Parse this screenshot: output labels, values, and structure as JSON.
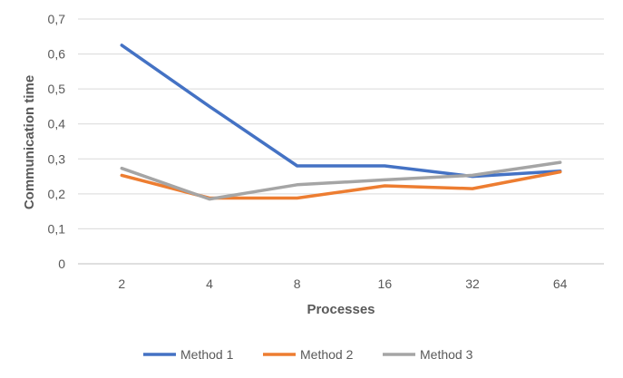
{
  "chart_data": {
    "type": "line",
    "title": "",
    "xlabel": "Processes",
    "ylabel": "Communication time",
    "categories": [
      "2",
      "4",
      "8",
      "16",
      "32",
      "64"
    ],
    "ylim": [
      0,
      0.7
    ],
    "yticks": [
      "0",
      "0,1",
      "0,2",
      "0,3",
      "0,4",
      "0,5",
      "0,6",
      "0,7"
    ],
    "grid": "horizontal",
    "legend_position": "bottom",
    "series": [
      {
        "name": "Method 1",
        "color": "#4472C4",
        "values": [
          0.625,
          0.45,
          0.28,
          0.28,
          0.25,
          0.265
        ]
      },
      {
        "name": "Method 2",
        "color": "#ED7D31",
        "values": [
          0.253,
          0.188,
          0.188,
          0.223,
          0.215,
          0.263
        ]
      },
      {
        "name": "Method 3",
        "color": "#A5A5A5",
        "values": [
          0.273,
          0.185,
          0.226,
          0.24,
          0.253,
          0.29
        ]
      }
    ]
  }
}
